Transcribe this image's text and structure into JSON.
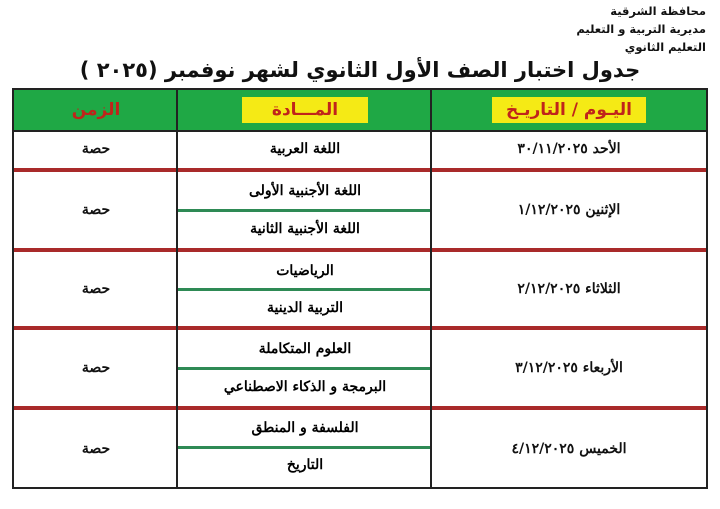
{
  "header_lines": [
    "محافظة الشرقية",
    "مديرية التربية و التعليم",
    "التعليم الثانوي"
  ],
  "title": "جدول اختبار الصف الأول الثانوي لشهر نوفمبر (٢٠٢٥ )",
  "columns": {
    "date": "اليـوم / التاريـخ",
    "subject": "المـــادة",
    "time": "الزمن"
  },
  "rows": [
    {
      "date": "الأحد ٣٠/١١/٢٠٢٥",
      "subjects": [
        "اللغة العربية"
      ],
      "time": "حصة"
    },
    {
      "date": "الإثنين ١/١٢/٢٠٢٥",
      "subjects": [
        "اللغة الأجنبية الأولى",
        "اللغة الأجنبية الثانية"
      ],
      "time": "حصة"
    },
    {
      "date": "الثلاثاء ٢/١٢/٢٠٢٥",
      "subjects": [
        "الرياضيات",
        "التربية الدينية"
      ],
      "time": "حصة"
    },
    {
      "date": "الأربعاء ٣/١٢/٢٠٢٥",
      "subjects": [
        "العلوم المتكاملة",
        "البرمجة و الذكاء الاصطناعي"
      ],
      "time": "حصة"
    },
    {
      "date": "الخميس ٤/١٢/٢٠٢٥",
      "subjects": [
        "الفلسفة و المنطق",
        "التاريخ"
      ],
      "time": "حصة"
    }
  ],
  "colors": {
    "header_bg": "#1fa845",
    "header_label_bg": "#f5ea15",
    "header_label_text": "#c0241b",
    "row_separator": "#a92a2a",
    "subrow_separator": "#2e8a55"
  }
}
